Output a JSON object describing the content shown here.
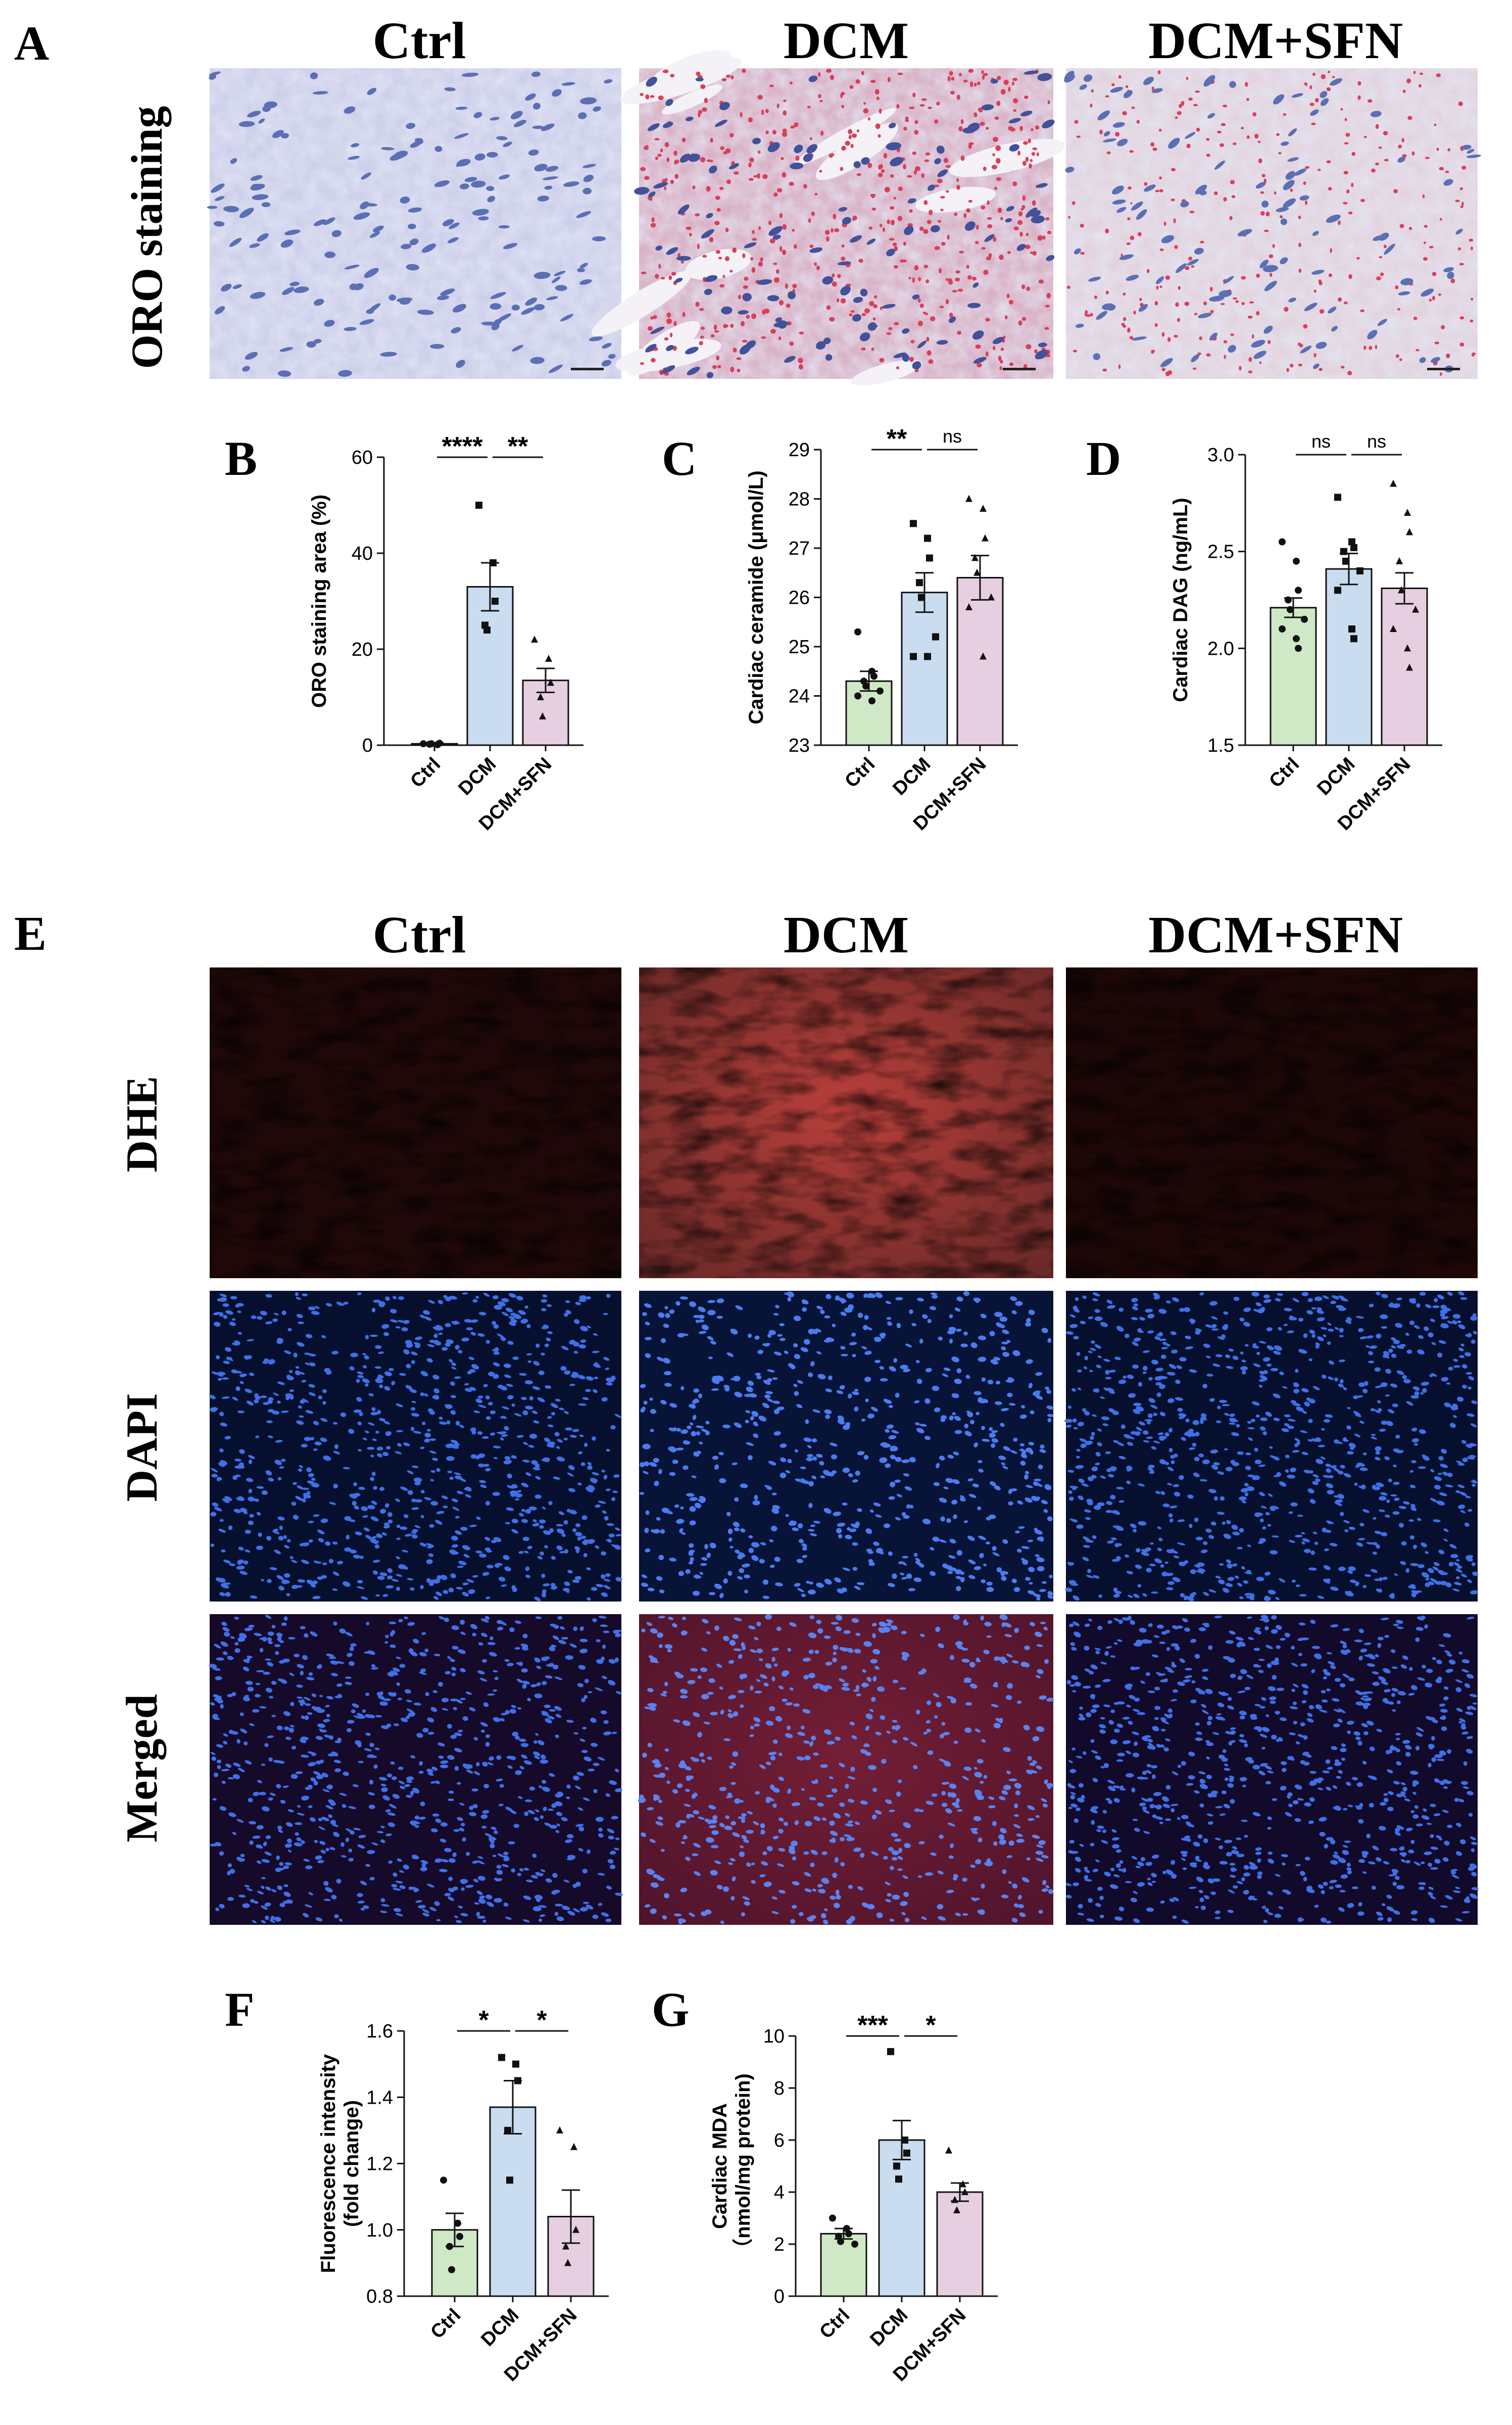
{
  "panel_letters": [
    "A",
    "B",
    "C",
    "D",
    "E",
    "F",
    "G"
  ],
  "group_labels": [
    "Ctrl",
    "DCM",
    "DCM+SFN"
  ],
  "section_a": {
    "row_label": "ORO staining"
  },
  "section_e": {
    "row_labels": [
      "DHE",
      "DAPI",
      "Merged"
    ]
  },
  "colors": {
    "ctrl_bar": "#cfe8c5",
    "dcm_bar": "#c9dcf0",
    "sfn_bar": "#e6cfe0",
    "oro_background": "#c8cbe6",
    "oro_nuclei": "#5b6fb4",
    "oro_lipid": "#d8405a",
    "dhe_red": "#b0201c",
    "dapi_blue": "#2a5bd6",
    "fluor_bg": "#0a0a12"
  },
  "chart_data": [
    {
      "panel": "B",
      "type": "bar",
      "categories": [
        "Ctrl",
        "DCM",
        "DCM+SFN"
      ],
      "values": [
        0.3,
        33,
        13.5
      ],
      "errors": [
        0.2,
        5,
        2.5
      ],
      "points": [
        [
          0.3,
          0.1,
          0.4,
          0.2,
          0.3
        ],
        [
          50,
          38,
          30,
          25,
          24
        ],
        [
          22,
          18,
          13,
          10,
          6
        ]
      ],
      "markers": [
        "circle",
        "square",
        "triangle"
      ],
      "ylabel": "ORO staining area (%)",
      "ylim": [
        0,
        60
      ],
      "yticks": [
        0,
        20,
        40,
        60
      ],
      "ytick_labels": [
        "0",
        "20",
        "40",
        "60"
      ],
      "sig": [
        {
          "from": 0,
          "to": 1,
          "label": "****"
        },
        {
          "from": 1,
          "to": 2,
          "label": "**"
        }
      ]
    },
    {
      "panel": "C",
      "type": "bar",
      "categories": [
        "Ctrl",
        "DCM",
        "DCM+SFN"
      ],
      "values": [
        24.3,
        26.1,
        26.4
      ],
      "errors": [
        0.2,
        0.4,
        0.45
      ],
      "points": [
        [
          25.3,
          24.5,
          24.4,
          24.3,
          24.2,
          24.1,
          24.0,
          23.9
        ],
        [
          27.5,
          27.2,
          26.8,
          26.3,
          26.0,
          25.2,
          24.8,
          24.8
        ],
        [
          28.0,
          27.8,
          27.2,
          26.8,
          26.5,
          26.0,
          25.8,
          24.8
        ]
      ],
      "markers": [
        "circle",
        "square",
        "triangle"
      ],
      "ylabel": "Cardiac ceramide (μmol/L)",
      "ylim": [
        23,
        29
      ],
      "yticks": [
        23,
        24,
        25,
        26,
        27,
        28,
        29
      ],
      "ytick_labels": [
        "23",
        "24",
        "25",
        "26",
        "27",
        "28",
        "29"
      ],
      "sig": [
        {
          "from": 0,
          "to": 1,
          "label": "**"
        },
        {
          "from": 1,
          "to": 2,
          "label": "ns"
        }
      ]
    },
    {
      "panel": "D",
      "type": "bar",
      "categories": [
        "Ctrl",
        "DCM",
        "DCM+SFN"
      ],
      "values": [
        2.21,
        2.41,
        2.31
      ],
      "errors": [
        0.05,
        0.08,
        0.08
      ],
      "points": [
        [
          2.55,
          2.45,
          2.3,
          2.25,
          2.2,
          2.15,
          2.1,
          2.05,
          2.0
        ],
        [
          2.78,
          2.55,
          2.52,
          2.5,
          2.45,
          2.4,
          2.3,
          2.1,
          2.05
        ],
        [
          2.85,
          2.7,
          2.6,
          2.45,
          2.3,
          2.2,
          2.1,
          2.0,
          1.9
        ]
      ],
      "markers": [
        "circle",
        "square",
        "triangle"
      ],
      "ylabel": "Cardiac DAG (ng/mL)",
      "ylim": [
        1.5,
        3.0
      ],
      "yticks": [
        1.5,
        2.0,
        2.5,
        3.0
      ],
      "ytick_labels": [
        "1.5",
        "2.0",
        "2.5",
        "3.0"
      ],
      "sig": [
        {
          "from": 0,
          "to": 1,
          "label": "ns"
        },
        {
          "from": 1,
          "to": 2,
          "label": "ns"
        }
      ]
    },
    {
      "panel": "F",
      "type": "bar",
      "categories": [
        "Ctrl",
        "DCM",
        "DCM+SFN"
      ],
      "values": [
        1.0,
        1.37,
        1.04
      ],
      "errors": [
        0.05,
        0.08,
        0.08
      ],
      "points": [
        [
          1.15,
          1.02,
          0.98,
          0.95,
          0.88
        ],
        [
          1.52,
          1.5,
          1.45,
          1.3,
          1.15
        ],
        [
          1.3,
          1.25,
          1.0,
          0.95,
          0.9
        ]
      ],
      "markers": [
        "circle",
        "square",
        "triangle"
      ],
      "ylabel": "Fluorescence intensity\n(fold change)",
      "ylim": [
        0.8,
        1.6
      ],
      "yticks": [
        0.8,
        1.0,
        1.2,
        1.4,
        1.6
      ],
      "ytick_labels": [
        "0.8",
        "1.0",
        "1.2",
        "1.4",
        "1.6"
      ],
      "sig": [
        {
          "from": 0,
          "to": 1,
          "label": "*"
        },
        {
          "from": 1,
          "to": 2,
          "label": "*"
        }
      ]
    },
    {
      "panel": "G",
      "type": "bar",
      "categories": [
        "Ctrl",
        "DCM",
        "DCM+SFN"
      ],
      "values": [
        2.4,
        6.0,
        4.0
      ],
      "errors": [
        0.2,
        0.75,
        0.35
      ],
      "points": [
        [
          3.0,
          2.6,
          2.4,
          2.3,
          2.1,
          2.0
        ],
        [
          9.4,
          6.0,
          5.5,
          5.0,
          4.5
        ],
        [
          5.6,
          4.3,
          4.0,
          3.7,
          3.3
        ]
      ],
      "markers": [
        "circle",
        "square",
        "triangle"
      ],
      "ylabel": "Cardiac MDA\n（nmol/mg protein)",
      "ylim": [
        0,
        10
      ],
      "yticks": [
        0,
        2,
        4,
        6,
        8,
        10
      ],
      "ytick_labels": [
        "0",
        "2",
        "4",
        "6",
        "8",
        "10"
      ],
      "sig": [
        {
          "from": 0,
          "to": 1,
          "label": "***"
        },
        {
          "from": 1,
          "to": 2,
          "label": "*"
        }
      ]
    }
  ]
}
